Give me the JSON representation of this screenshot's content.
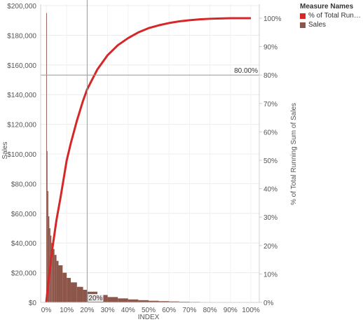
{
  "legend": {
    "title": "Measure Names",
    "items": [
      {
        "label": "% of Total Runni..",
        "color": "#d62728"
      },
      {
        "label": "Sales",
        "color": "#8c564b"
      }
    ]
  },
  "chart_data": {
    "type": "bar",
    "title": "",
    "xlabel": "INDEX",
    "ylabel": "Sales",
    "y2label": "% of Total Running Sum of Sales",
    "x_ticks": [
      "0%",
      "10%",
      "20%",
      "30%",
      "40%",
      "50%",
      "60%",
      "70%",
      "80%",
      "90%",
      "100%"
    ],
    "y_ticks": [
      "$0",
      "$20,000",
      "$40,000",
      "$60,000",
      "$80,000",
      "$100,000",
      "$120,000",
      "$140,000",
      "$160,000",
      "$180,000",
      "$200,000"
    ],
    "y2_ticks": [
      "0%",
      "10%",
      "20%",
      "30%",
      "40%",
      "50%",
      "60%",
      "70%",
      "80%",
      "90%",
      "100%"
    ],
    "ylim": [
      0,
      200000
    ],
    "y2lim": [
      0,
      100
    ],
    "xlim": [
      0,
      100
    ],
    "grid": true,
    "legend_position": "right",
    "series": [
      {
        "name": "Sales",
        "type": "bar",
        "color": "#8c564b",
        "x": [
          0.0,
          0.3,
          0.6,
          1,
          1.5,
          2,
          2.5,
          3,
          4,
          5,
          6,
          8,
          10,
          12,
          15,
          18,
          20,
          25,
          30,
          35,
          40,
          45,
          50,
          55,
          60,
          65,
          70,
          75,
          80,
          85,
          90,
          95
        ],
        "y": [
          195000,
          102000,
          75000,
          58000,
          50000,
          45000,
          40000,
          36000,
          32000,
          28000,
          25000,
          20000,
          16500,
          13500,
          10500,
          8500,
          7200,
          5000,
          3600,
          2700,
          2000,
          1500,
          1100,
          850,
          650,
          480,
          350,
          250,
          180,
          120,
          80,
          40
        ]
      },
      {
        "name": "% of Total Runni..",
        "type": "line",
        "color": "#d62728",
        "x": [
          0,
          1,
          2,
          3,
          5,
          7,
          10,
          12,
          15,
          18,
          20,
          25,
          30,
          35,
          40,
          45,
          50,
          55,
          60,
          65,
          70,
          75,
          80,
          85,
          90,
          95,
          100
        ],
        "y": [
          0,
          7,
          13,
          19,
          29,
          37,
          50,
          56,
          64,
          71,
          75,
          82,
          87,
          90.5,
          93,
          95,
          96.5,
          97.5,
          98.3,
          98.9,
          99.3,
          99.6,
          99.8,
          99.9,
          100,
          100,
          100
        ]
      }
    ],
    "reference_lines": [
      {
        "axis": "y2",
        "value": 80,
        "label": "80.00%"
      },
      {
        "axis": "x",
        "value": 20,
        "label": "20%"
      }
    ]
  }
}
